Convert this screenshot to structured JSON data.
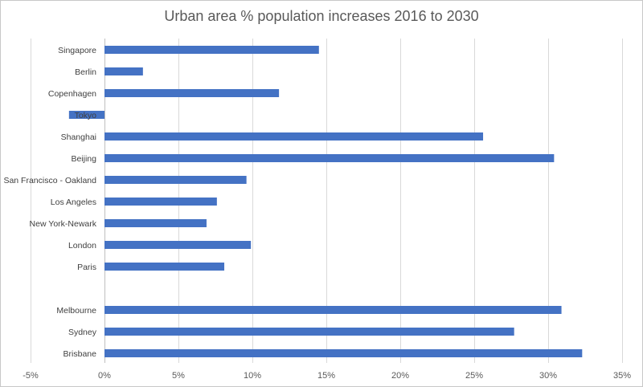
{
  "chart_data": {
    "type": "bar",
    "orientation": "horizontal",
    "title": "Urban area % population increases 2016 to 2030",
    "xlabel": "",
    "ylabel": "",
    "xlim": [
      -5,
      35
    ],
    "x_ticks": [
      -5,
      0,
      5,
      10,
      15,
      20,
      25,
      30,
      35
    ],
    "x_tick_labels": [
      "-5%",
      "0%",
      "5%",
      "10%",
      "15%",
      "20%",
      "25%",
      "30%",
      "35%"
    ],
    "grid": true,
    "legend": false,
    "bar_color": "#4472C4",
    "categories": [
      "Singapore",
      "Berlin",
      "Copenhagen",
      "Tokyo",
      "Shanghai",
      "Beijing",
      "San Francisco - Oakland",
      "Los Angeles",
      "New York-Newark",
      "London",
      "Paris",
      "",
      "Melbourne",
      "Sydney",
      "Brisbane"
    ],
    "values": [
      14.5,
      2.6,
      11.8,
      -2.4,
      25.6,
      30.4,
      9.6,
      7.6,
      6.9,
      9.9,
      8.1,
      null,
      30.9,
      27.7,
      32.3
    ]
  }
}
